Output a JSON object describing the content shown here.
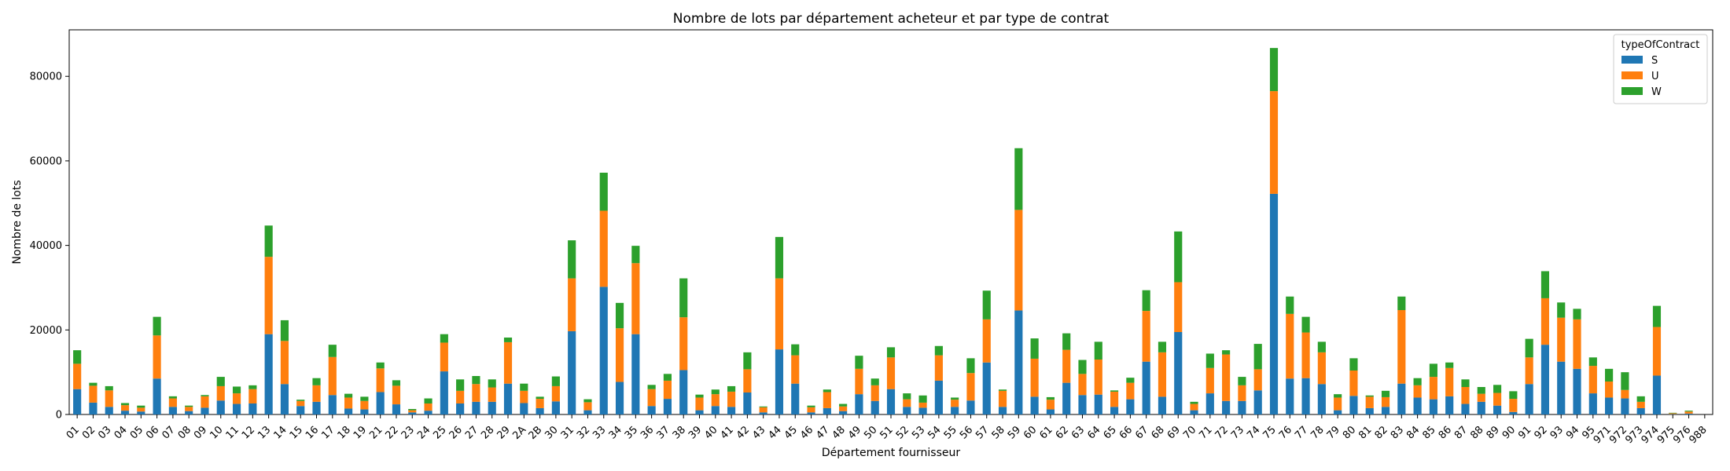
{
  "chart_data": {
    "type": "bar",
    "stacked": true,
    "title": "Nombre de lots par département acheteur et par type de contrat",
    "xlabel": "Département fournisseur",
    "ylabel": "Nombre de lots",
    "ylim": [
      0,
      91000
    ],
    "yticks": [
      0,
      20000,
      40000,
      60000,
      80000
    ],
    "legend": {
      "title": "typeOfContract",
      "placement": "top-right"
    },
    "colors": {
      "S": "#1f77b4",
      "U": "#ff7f0e",
      "W": "#2ca02c"
    },
    "categories": [
      "01",
      "02",
      "03",
      "04",
      "05",
      "06",
      "07",
      "08",
      "09",
      "10",
      "11",
      "12",
      "13",
      "14",
      "15",
      "16",
      "17",
      "18",
      "19",
      "21",
      "22",
      "23",
      "24",
      "25",
      "26",
      "27",
      "28",
      "29",
      "2A",
      "2B",
      "30",
      "31",
      "32",
      "33",
      "34",
      "35",
      "36",
      "37",
      "38",
      "39",
      "40",
      "41",
      "42",
      "43",
      "44",
      "45",
      "46",
      "47",
      "48",
      "49",
      "50",
      "51",
      "52",
      "53",
      "54",
      "55",
      "56",
      "57",
      "58",
      "59",
      "60",
      "61",
      "62",
      "63",
      "64",
      "65",
      "66",
      "67",
      "68",
      "69",
      "70",
      "71",
      "72",
      "73",
      "74",
      "75",
      "76",
      "77",
      "78",
      "79",
      "80",
      "81",
      "82",
      "83",
      "84",
      "85",
      "86",
      "87",
      "88",
      "89",
      "90",
      "91",
      "92",
      "93",
      "94",
      "95",
      "971",
      "972",
      "973",
      "974",
      "975",
      "976",
      "988"
    ],
    "series": [
      {
        "name": "S",
        "values": [
          6000,
          2800,
          1800,
          900,
          700,
          8500,
          1800,
          800,
          1600,
          3300,
          2500,
          2600,
          19000,
          7200,
          2000,
          3000,
          4600,
          1400,
          1200,
          5300,
          2400,
          500,
          900,
          10200,
          2600,
          3000,
          3000,
          7300,
          2700,
          1500,
          3100,
          19700,
          1000,
          30200,
          7700,
          19000,
          2000,
          3700,
          10500,
          1000,
          2000,
          1800,
          5200,
          500,
          15400,
          7300,
          500,
          1500,
          800,
          4800,
          3200,
          6000,
          1800,
          1600,
          8000,
          1800,
          3300,
          12300,
          1800,
          24600,
          4200,
          1200,
          7500,
          4600,
          4700,
          1800,
          3600,
          12500,
          4200,
          19500,
          1000,
          5000,
          3200,
          3200,
          5700,
          52200,
          8500,
          8600,
          7200,
          1000,
          4400,
          1500,
          1800,
          7300,
          4000,
          3600,
          4300,
          2500,
          3000,
          2100,
          600,
          7200,
          16500,
          12500,
          10800,
          5000,
          4000,
          3800,
          1500,
          9200,
          100,
          200,
          0
        ]
      },
      {
        "name": "U",
        "values": [
          6000,
          4000,
          3900,
          1300,
          900,
          10200,
          2000,
          1000,
          2700,
          3400,
          2500,
          3400,
          18300,
          10200,
          1200,
          3900,
          9000,
          2600,
          2000,
          5600,
          4400,
          500,
          1700,
          6800,
          3000,
          4200,
          3400,
          9800,
          2900,
          2200,
          3600,
          12500,
          1900,
          18000,
          12700,
          16800,
          4000,
          4300,
          12500,
          3000,
          2800,
          3600,
          5500,
          1200,
          16800,
          6700,
          1200,
          3800,
          1100,
          6000,
          3700,
          7500,
          1800,
          1200,
          6000,
          1700,
          6500,
          10200,
          3800,
          23800,
          9000,
          2300,
          7800,
          5000,
          8300,
          3600,
          3900,
          12000,
          10500,
          11800,
          1500,
          6000,
          11000,
          3700,
          5000,
          24300,
          15300,
          10800,
          7500,
          3000,
          6000,
          2700,
          2300,
          17400,
          2900,
          5300,
          6700,
          4000,
          1900,
          3000,
          3100,
          6300,
          11000,
          10400,
          11700,
          6500,
          3800,
          2000,
          1500,
          11500,
          200,
          500,
          0
        ]
      },
      {
        "name": "W",
        "values": [
          3200,
          700,
          1000,
          500,
          500,
          4400,
          500,
          300,
          300,
          2200,
          1600,
          900,
          7400,
          4900,
          300,
          1700,
          2900,
          900,
          1000,
          1400,
          1300,
          300,
          1200,
          2000,
          2700,
          1900,
          1900,
          1100,
          1700,
          500,
          2300,
          9000,
          700,
          9000,
          6000,
          4100,
          1000,
          1600,
          9200,
          700,
          1100,
          1300,
          4000,
          200,
          9800,
          2600,
          400,
          600,
          600,
          3100,
          1600,
          2400,
          1400,
          1700,
          2200,
          500,
          3500,
          6800,
          300,
          14600,
          4800,
          600,
          3900,
          3300,
          4200,
          300,
          1200,
          4900,
          2500,
          12000,
          500,
          3400,
          1000,
          2000,
          6000,
          10200,
          4100,
          3700,
          2500,
          800,
          2900,
          300,
          1500,
          3200,
          1700,
          3100,
          1300,
          1800,
          1600,
          1900,
          1800,
          4400,
          6400,
          3600,
          2500,
          2000,
          3000,
          4200,
          1300,
          5000,
          100,
          200,
          0
        ]
      }
    ]
  }
}
